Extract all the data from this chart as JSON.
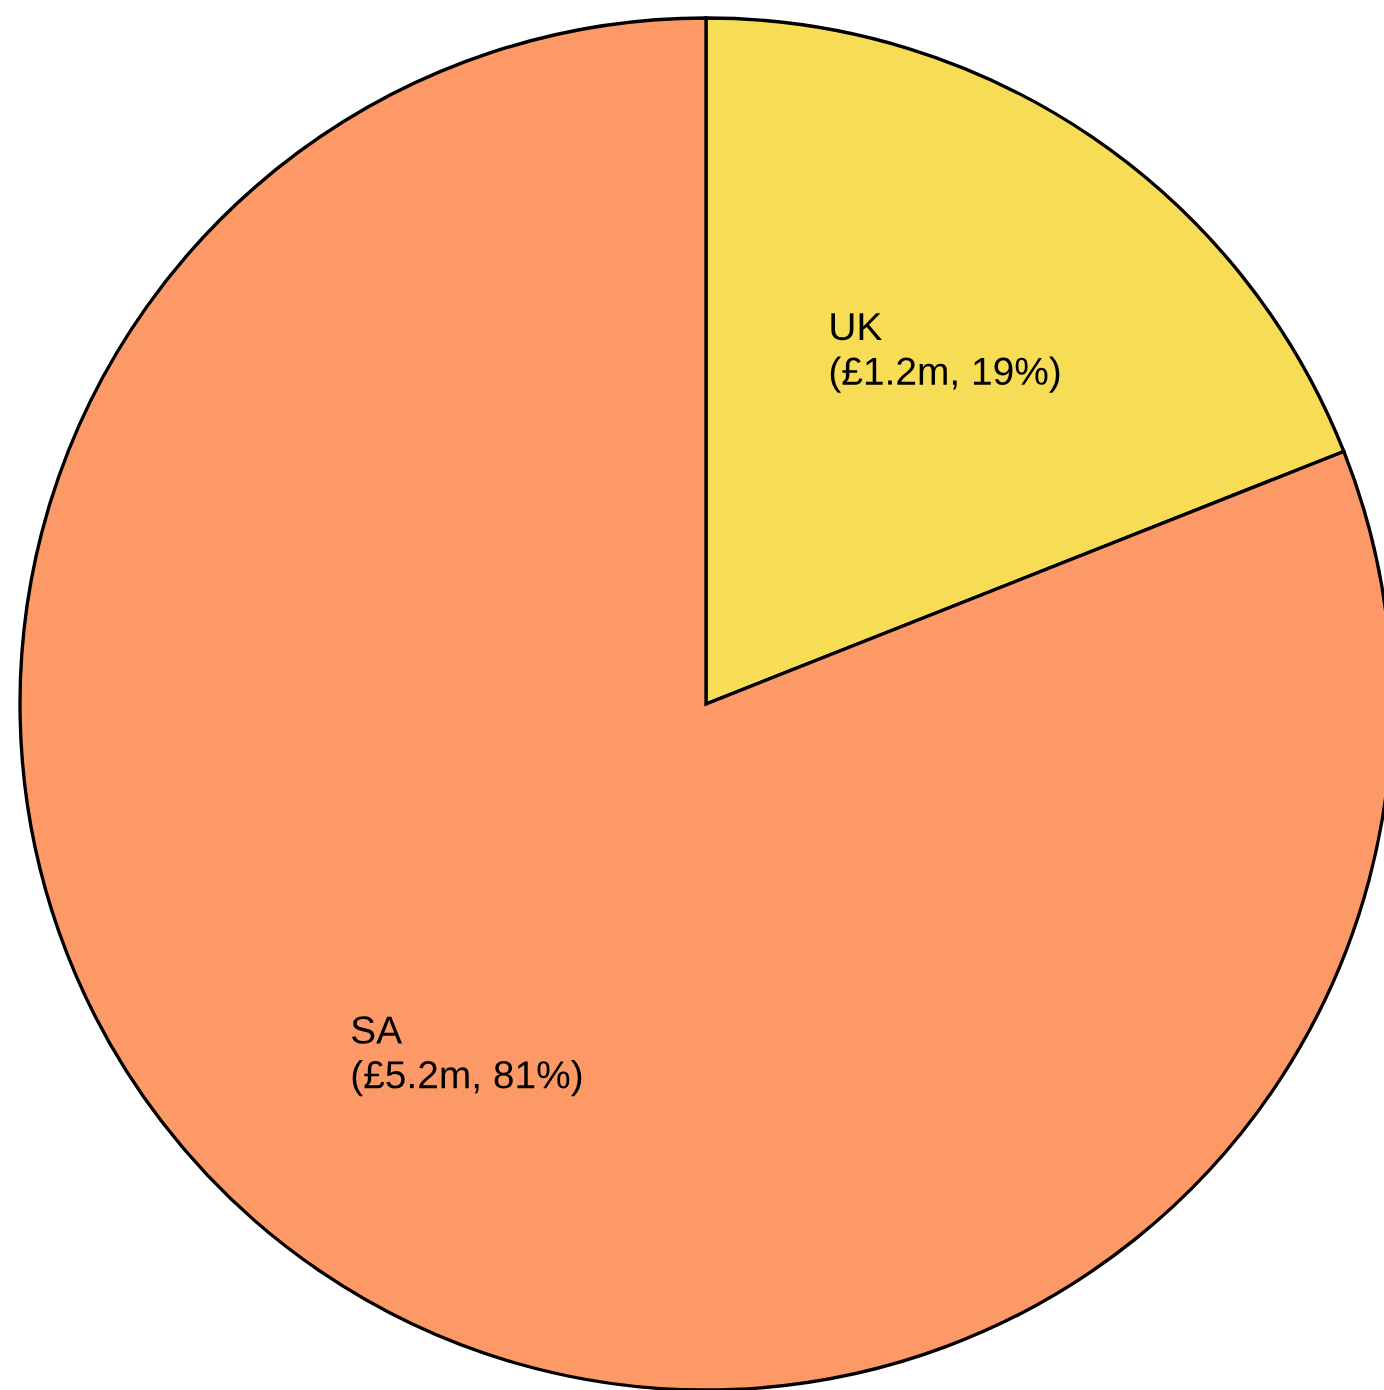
{
  "chart_data": {
    "type": "pie",
    "categories": [
      "UK",
      "SA"
    ],
    "values": [
      19,
      81
    ],
    "value_labels": [
      "(£1.2m, 19%)",
      "(£5.2m, 81%)"
    ],
    "colors": [
      "#f7dc55",
      "#fd9966"
    ]
  }
}
